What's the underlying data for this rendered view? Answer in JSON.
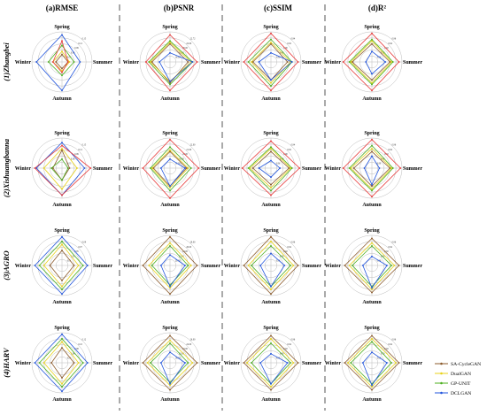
{
  "columns": [
    "(a)RMSE",
    "(b)PSNR",
    "(c)SSIM",
    "(d)R²"
  ],
  "rows": [
    "(1)Zhangbei",
    "(2)Xishuangbanna",
    "(3)AGRO",
    "(4)HARV"
  ],
  "axes": [
    "Spring",
    "Summer",
    "Autumn",
    "Winter"
  ],
  "colors": {
    "SA-CycleGAN": "#8B5A2B",
    "DualGAN": "#E8D21A",
    "GP-UNIT": "#4CAF1E",
    "DCLGAN": "#2255DD",
    "extra": "#E83A3A",
    "grid": "#bbbbbb",
    "divider": "#555555"
  },
  "legend": [
    "SA-CycleGAN",
    "DualGAN",
    "GP-UNIT",
    "DCLGAN"
  ],
  "chart_data": [
    {
      "type": "radar",
      "title": "(a)RMSE",
      "row": "(1)Zhangbei",
      "ticks": [
        "0.15",
        "0.12",
        "0.09",
        "0.06",
        "0.03"
      ],
      "series": [
        {
          "color": "#8B5A2B",
          "values": [
            0.25,
            0.2,
            0.22,
            0.2
          ]
        },
        {
          "color": "#E8D21A",
          "values": [
            0.35,
            0.25,
            0.3,
            0.3
          ]
        },
        {
          "color": "#4CAF1E",
          "values": [
            0.55,
            0.4,
            0.45,
            0.45
          ]
        },
        {
          "color": "#2255DD",
          "values": [
            0.9,
            0.6,
            0.95,
            0.85
          ]
        },
        {
          "color": "#E83A3A",
          "values": [
            0.7,
            0.2,
            0.35,
            0.3
          ]
        }
      ]
    },
    {
      "type": "radar",
      "title": "(b)PSNR",
      "row": "(1)Zhangbei",
      "ticks": [
        "22.72",
        "22.00",
        "20.00",
        "18.00",
        "16.00"
      ],
      "series": [
        {
          "color": "#8B5A2B",
          "values": [
            0.6,
            0.6,
            0.7,
            0.6
          ]
        },
        {
          "color": "#E8D21A",
          "values": [
            0.65,
            0.7,
            0.65,
            0.65
          ]
        },
        {
          "color": "#4CAF1E",
          "values": [
            0.7,
            0.75,
            0.75,
            0.7
          ]
        },
        {
          "color": "#2255DD",
          "values": [
            0.3,
            0.75,
            0.65,
            0.35
          ]
        },
        {
          "color": "#E83A3A",
          "values": [
            0.9,
            0.9,
            0.95,
            0.8
          ]
        }
      ]
    },
    {
      "type": "radar",
      "title": "(c)SSIM",
      "row": "(1)Zhangbei",
      "ticks": [
        "0.94",
        "0.92",
        "0.90",
        "0.88",
        "0.86"
      ],
      "series": [
        {
          "color": "#8B5A2B",
          "values": [
            0.6,
            0.55,
            0.6,
            0.6
          ]
        },
        {
          "color": "#E8D21A",
          "values": [
            0.65,
            0.65,
            0.7,
            0.65
          ]
        },
        {
          "color": "#4CAF1E",
          "values": [
            0.75,
            0.7,
            0.8,
            0.75
          ]
        },
        {
          "color": "#2255DD",
          "values": [
            0.3,
            0.7,
            0.6,
            0.4
          ]
        },
        {
          "color": "#E83A3A",
          "values": [
            0.95,
            0.9,
            0.95,
            0.9
          ]
        }
      ]
    },
    {
      "type": "radar",
      "title": "(d)R²",
      "row": "(1)Zhangbei",
      "ticks": [
        "0.96",
        "0.94",
        "0.92",
        "0.90",
        "0.88"
      ],
      "series": [
        {
          "color": "#8B5A2B",
          "values": [
            0.6,
            0.6,
            0.6,
            0.65
          ]
        },
        {
          "color": "#E8D21A",
          "values": [
            0.7,
            0.65,
            0.7,
            0.7
          ]
        },
        {
          "color": "#4CAF1E",
          "values": [
            0.75,
            0.7,
            0.75,
            0.75
          ]
        },
        {
          "color": "#2255DD",
          "values": [
            0.35,
            0.45,
            0.4,
            0.2
          ]
        },
        {
          "color": "#E83A3A",
          "values": [
            0.95,
            0.9,
            0.95,
            0.95
          ]
        }
      ]
    },
    {
      "type": "radar",
      "title": "(a)RMSE",
      "row": "(2)Xishuangbanna",
      "ticks": [
        "0.15",
        "0.12",
        "0.09",
        "0.06",
        "0.03"
      ],
      "series": [
        {
          "color": "#8B5A2B",
          "values": [
            0.6,
            0.25,
            0.4,
            0.3
          ]
        },
        {
          "color": "#E8D21A",
          "values": [
            0.65,
            0.5,
            0.7,
            0.6
          ]
        },
        {
          "color": "#4CAF1E",
          "values": [
            0.3,
            0.2,
            0.4,
            0.35
          ]
        },
        {
          "color": "#2255DD",
          "values": [
            0.85,
            0.75,
            0.9,
            0.85
          ]
        },
        {
          "color": "#E83A3A",
          "values": [
            0.75,
            0.95,
            0.9,
            0.9
          ]
        }
      ]
    },
    {
      "type": "radar",
      "title": "(b)PSNR",
      "row": "(2)Xishuangbanna",
      "ticks": [
        "22.00",
        "21.00",
        "20.00",
        "19.00",
        "18.00"
      ],
      "series": [
        {
          "color": "#8B5A2B",
          "values": [
            0.55,
            0.55,
            0.6,
            0.55
          ]
        },
        {
          "color": "#E8D21A",
          "values": [
            0.6,
            0.6,
            0.65,
            0.6
          ]
        },
        {
          "color": "#4CAF1E",
          "values": [
            0.7,
            0.7,
            0.75,
            0.65
          ]
        },
        {
          "color": "#2255DD",
          "values": [
            0.3,
            0.5,
            0.6,
            0.3
          ]
        },
        {
          "color": "#E83A3A",
          "values": [
            0.95,
            0.95,
            1.0,
            0.9
          ]
        }
      ]
    },
    {
      "type": "radar",
      "title": "(c)SSIM",
      "row": "(2)Xishuangbanna",
      "ticks": [
        "0.94",
        "0.92",
        "0.90",
        "0.88",
        "0.86"
      ],
      "series": [
        {
          "color": "#8B5A2B",
          "values": [
            0.55,
            0.6,
            0.55,
            0.6
          ]
        },
        {
          "color": "#E8D21A",
          "values": [
            0.65,
            0.65,
            0.65,
            0.7
          ]
        },
        {
          "color": "#4CAF1E",
          "values": [
            0.7,
            0.7,
            0.75,
            0.75
          ]
        },
        {
          "color": "#2255DD",
          "values": [
            0.25,
            0.3,
            0.3,
            0.4
          ]
        },
        {
          "color": "#E83A3A",
          "values": [
            0.9,
            0.95,
            0.9,
            0.95
          ]
        }
      ]
    },
    {
      "type": "radar",
      "title": "(d)R²",
      "row": "(2)Xishuangbanna",
      "ticks": [
        "0.96",
        "0.94",
        "0.92",
        "0.90",
        "0.88"
      ],
      "series": [
        {
          "color": "#8B5A2B",
          "values": [
            0.55,
            0.6,
            0.6,
            0.6
          ]
        },
        {
          "color": "#E8D21A",
          "values": [
            0.65,
            0.65,
            0.7,
            0.7
          ]
        },
        {
          "color": "#4CAF1E",
          "values": [
            0.75,
            0.7,
            0.75,
            0.75
          ]
        },
        {
          "color": "#2255DD",
          "values": [
            0.4,
            0.25,
            0.55,
            0.25
          ]
        },
        {
          "color": "#E83A3A",
          "values": [
            0.95,
            0.95,
            0.95,
            0.95
          ]
        }
      ]
    },
    {
      "type": "radar",
      "title": "(a)RMSE",
      "row": "(3)AGRO",
      "ticks": [
        "0.09",
        "0.07",
        "0.05",
        "0.03",
        "0.01"
      ],
      "series": [
        {
          "color": "#8B5A2B",
          "values": [
            0.5,
            0.4,
            0.5,
            0.4
          ]
        },
        {
          "color": "#E8D21A",
          "values": [
            0.7,
            0.55,
            0.7,
            0.6
          ]
        },
        {
          "color": "#4CAF1E",
          "values": [
            0.8,
            0.7,
            0.8,
            0.75
          ]
        },
        {
          "color": "#2255DD",
          "values": [
            0.95,
            0.85,
            0.95,
            0.9
          ]
        }
      ]
    },
    {
      "type": "radar",
      "title": "(b)PSNR",
      "row": "(3)AGRO",
      "ticks": [
        "28.00",
        "26.00",
        "24.00",
        "22.00",
        "20.00"
      ],
      "series": [
        {
          "color": "#8B5A2B",
          "values": [
            0.95,
            0.9,
            0.95,
            0.9
          ]
        },
        {
          "color": "#E8D21A",
          "values": [
            0.75,
            0.7,
            0.75,
            0.7
          ]
        },
        {
          "color": "#4CAF1E",
          "values": [
            0.65,
            0.6,
            0.65,
            0.6
          ]
        },
        {
          "color": "#2255DD",
          "values": [
            0.35,
            0.5,
            0.7,
            0.3
          ]
        }
      ]
    },
    {
      "type": "radar",
      "title": "(c)SSIM",
      "row": "(3)AGRO",
      "ticks": [
        "0.96",
        "0.94",
        "0.92",
        "0.90",
        "0.88"
      ],
      "series": [
        {
          "color": "#8B5A2B",
          "values": [
            0.95,
            0.9,
            0.95,
            0.9
          ]
        },
        {
          "color": "#E8D21A",
          "values": [
            0.8,
            0.75,
            0.8,
            0.75
          ]
        },
        {
          "color": "#4CAF1E",
          "values": [
            0.65,
            0.65,
            0.7,
            0.65
          ]
        },
        {
          "color": "#2255DD",
          "values": [
            0.4,
            0.45,
            0.7,
            0.35
          ]
        }
      ]
    },
    {
      "type": "radar",
      "title": "(d)R²",
      "row": "(3)AGRO",
      "ticks": [
        "0.96",
        "0.94",
        "0.92",
        "0.90",
        "0.88"
      ],
      "series": [
        {
          "color": "#8B5A2B",
          "values": [
            0.9,
            0.9,
            0.9,
            0.9
          ]
        },
        {
          "color": "#E8D21A",
          "values": [
            0.75,
            0.75,
            0.8,
            0.75
          ]
        },
        {
          "color": "#4CAF1E",
          "values": [
            0.65,
            0.65,
            0.7,
            0.65
          ]
        },
        {
          "color": "#2255DD",
          "values": [
            0.3,
            0.5,
            0.75,
            0.3
          ]
        }
      ]
    },
    {
      "type": "radar",
      "title": "(a)RMSE",
      "row": "(4)HARV",
      "ticks": [
        "0.12",
        "0.10",
        "0.08",
        "0.06",
        "0.04"
      ],
      "series": [
        {
          "color": "#8B5A2B",
          "values": [
            0.5,
            0.4,
            0.5,
            0.35
          ]
        },
        {
          "color": "#E8D21A",
          "values": [
            0.7,
            0.55,
            0.7,
            0.6
          ]
        },
        {
          "color": "#4CAF1E",
          "values": [
            0.8,
            0.7,
            0.8,
            0.75
          ]
        },
        {
          "color": "#2255DD",
          "values": [
            0.95,
            0.85,
            0.95,
            0.9
          ]
        }
      ]
    },
    {
      "type": "radar",
      "title": "(b)PSNR",
      "row": "(4)HARV",
      "ticks": [
        "26.00",
        "24.00",
        "22.00",
        "20.00",
        "18.00"
      ],
      "series": [
        {
          "color": "#8B5A2B",
          "values": [
            0.9,
            0.9,
            0.9,
            0.9
          ]
        },
        {
          "color": "#E8D21A",
          "values": [
            0.75,
            0.75,
            0.75,
            0.75
          ]
        },
        {
          "color": "#4CAF1E",
          "values": [
            0.65,
            0.6,
            0.65,
            0.65
          ]
        },
        {
          "color": "#2255DD",
          "values": [
            0.35,
            0.5,
            0.7,
            0.3
          ]
        }
      ]
    },
    {
      "type": "radar",
      "title": "(c)SSIM",
      "row": "(4)HARV",
      "ticks": [
        "0.96",
        "0.94",
        "0.92",
        "0.90",
        "0.88"
      ],
      "series": [
        {
          "color": "#8B5A2B",
          "values": [
            0.9,
            0.9,
            0.9,
            0.9
          ]
        },
        {
          "color": "#E8D21A",
          "values": [
            0.8,
            0.75,
            0.8,
            0.8
          ]
        },
        {
          "color": "#4CAF1E",
          "values": [
            0.65,
            0.65,
            0.7,
            0.65
          ]
        },
        {
          "color": "#2255DD",
          "values": [
            0.3,
            0.55,
            0.7,
            0.35
          ]
        }
      ]
    },
    {
      "type": "radar",
      "title": "(d)R²",
      "row": "(4)HARV",
      "ticks": [
        "0.96",
        "0.94",
        "0.92",
        "0.90",
        "0.88"
      ],
      "series": [
        {
          "color": "#8B5A2B",
          "values": [
            0.9,
            0.9,
            0.9,
            0.9
          ]
        },
        {
          "color": "#E8D21A",
          "values": [
            0.8,
            0.8,
            0.8,
            0.8
          ]
        },
        {
          "color": "#4CAF1E",
          "values": [
            0.7,
            0.65,
            0.7,
            0.7
          ]
        },
        {
          "color": "#2255DD",
          "values": [
            0.35,
            0.5,
            0.75,
            0.3
          ]
        }
      ]
    }
  ]
}
